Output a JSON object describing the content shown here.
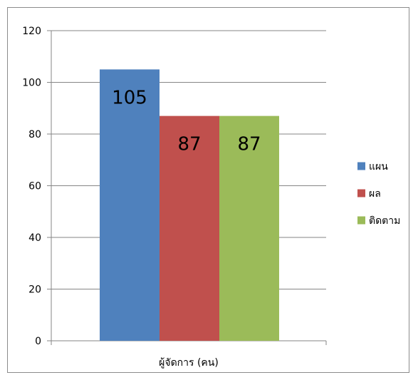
{
  "chart_data": {
    "type": "bar",
    "categories": [
      "ผู้จัดการ (คน)"
    ],
    "series": [
      {
        "name": "แผน",
        "values": [
          105
        ],
        "color": "#4f81bd"
      },
      {
        "name": "ผล",
        "values": [
          87
        ],
        "color": "#c0504d"
      },
      {
        "name": "ติดตาม",
        "values": [
          87
        ],
        "color": "#9bbb59"
      }
    ],
    "ylim": [
      0,
      120
    ],
    "yticks": [
      0,
      20,
      40,
      60,
      80,
      100,
      120
    ],
    "grid": true,
    "legend_position": "right",
    "data_labels": true
  }
}
